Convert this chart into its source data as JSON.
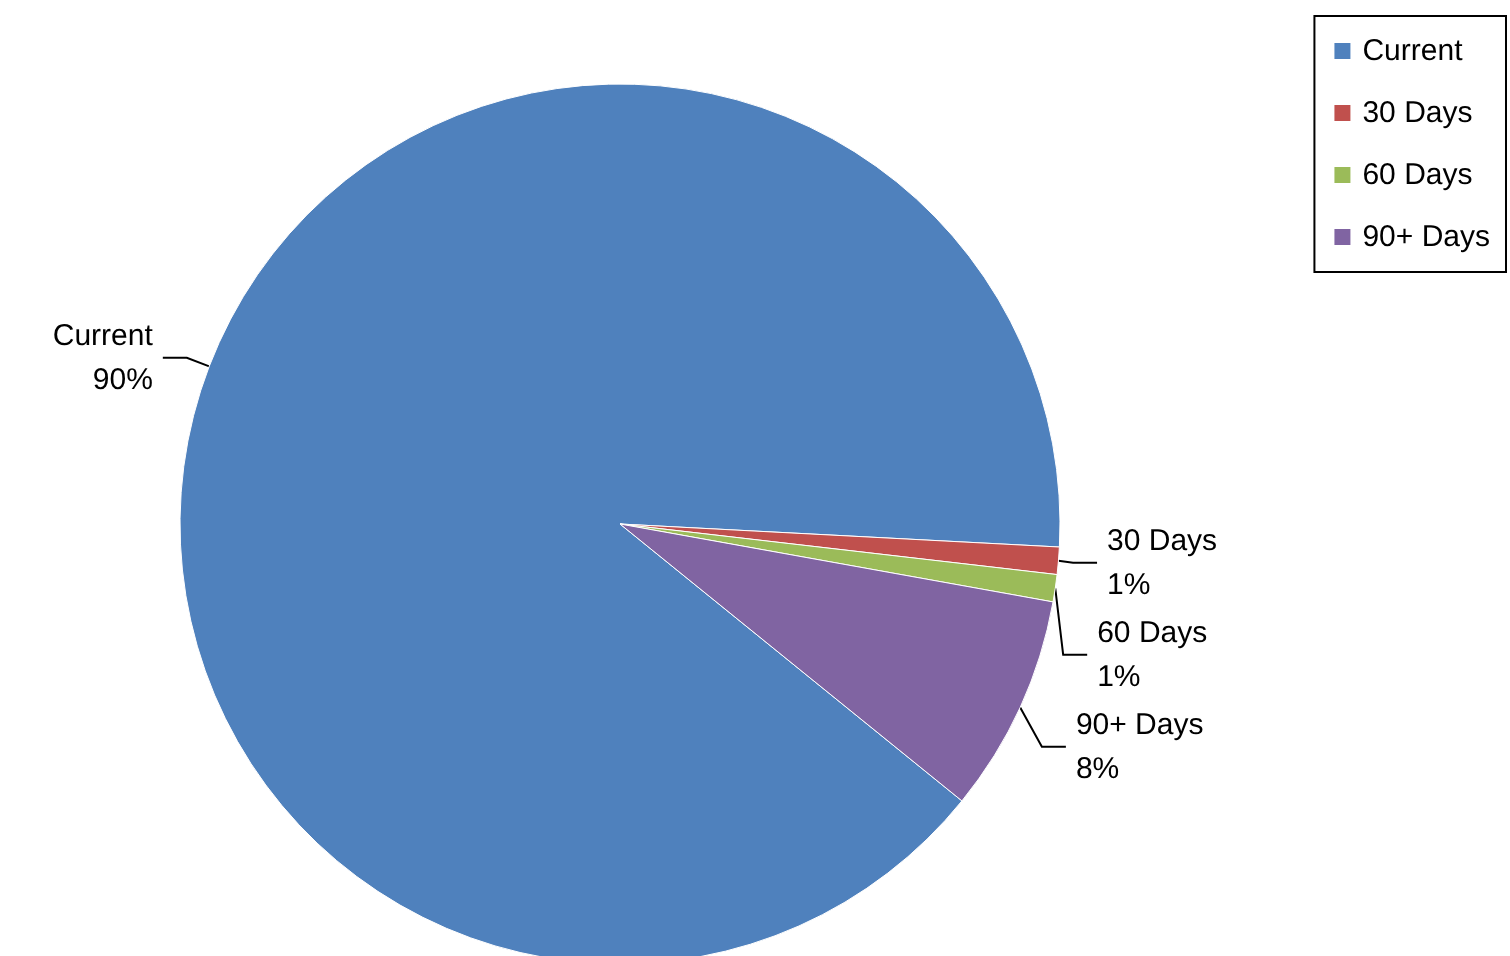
{
  "chart_data": {
    "type": "pie",
    "categories": [
      "Current",
      "30 Days",
      "60 Days",
      "90+ Days"
    ],
    "values": [
      90,
      1,
      1,
      8
    ],
    "colors": [
      "#4f81bd",
      "#c0504d",
      "#9bbb59",
      "#8064a2"
    ],
    "value_labels": [
      "90%",
      "1%",
      "1%",
      "8%"
    ],
    "legend": "top right"
  }
}
